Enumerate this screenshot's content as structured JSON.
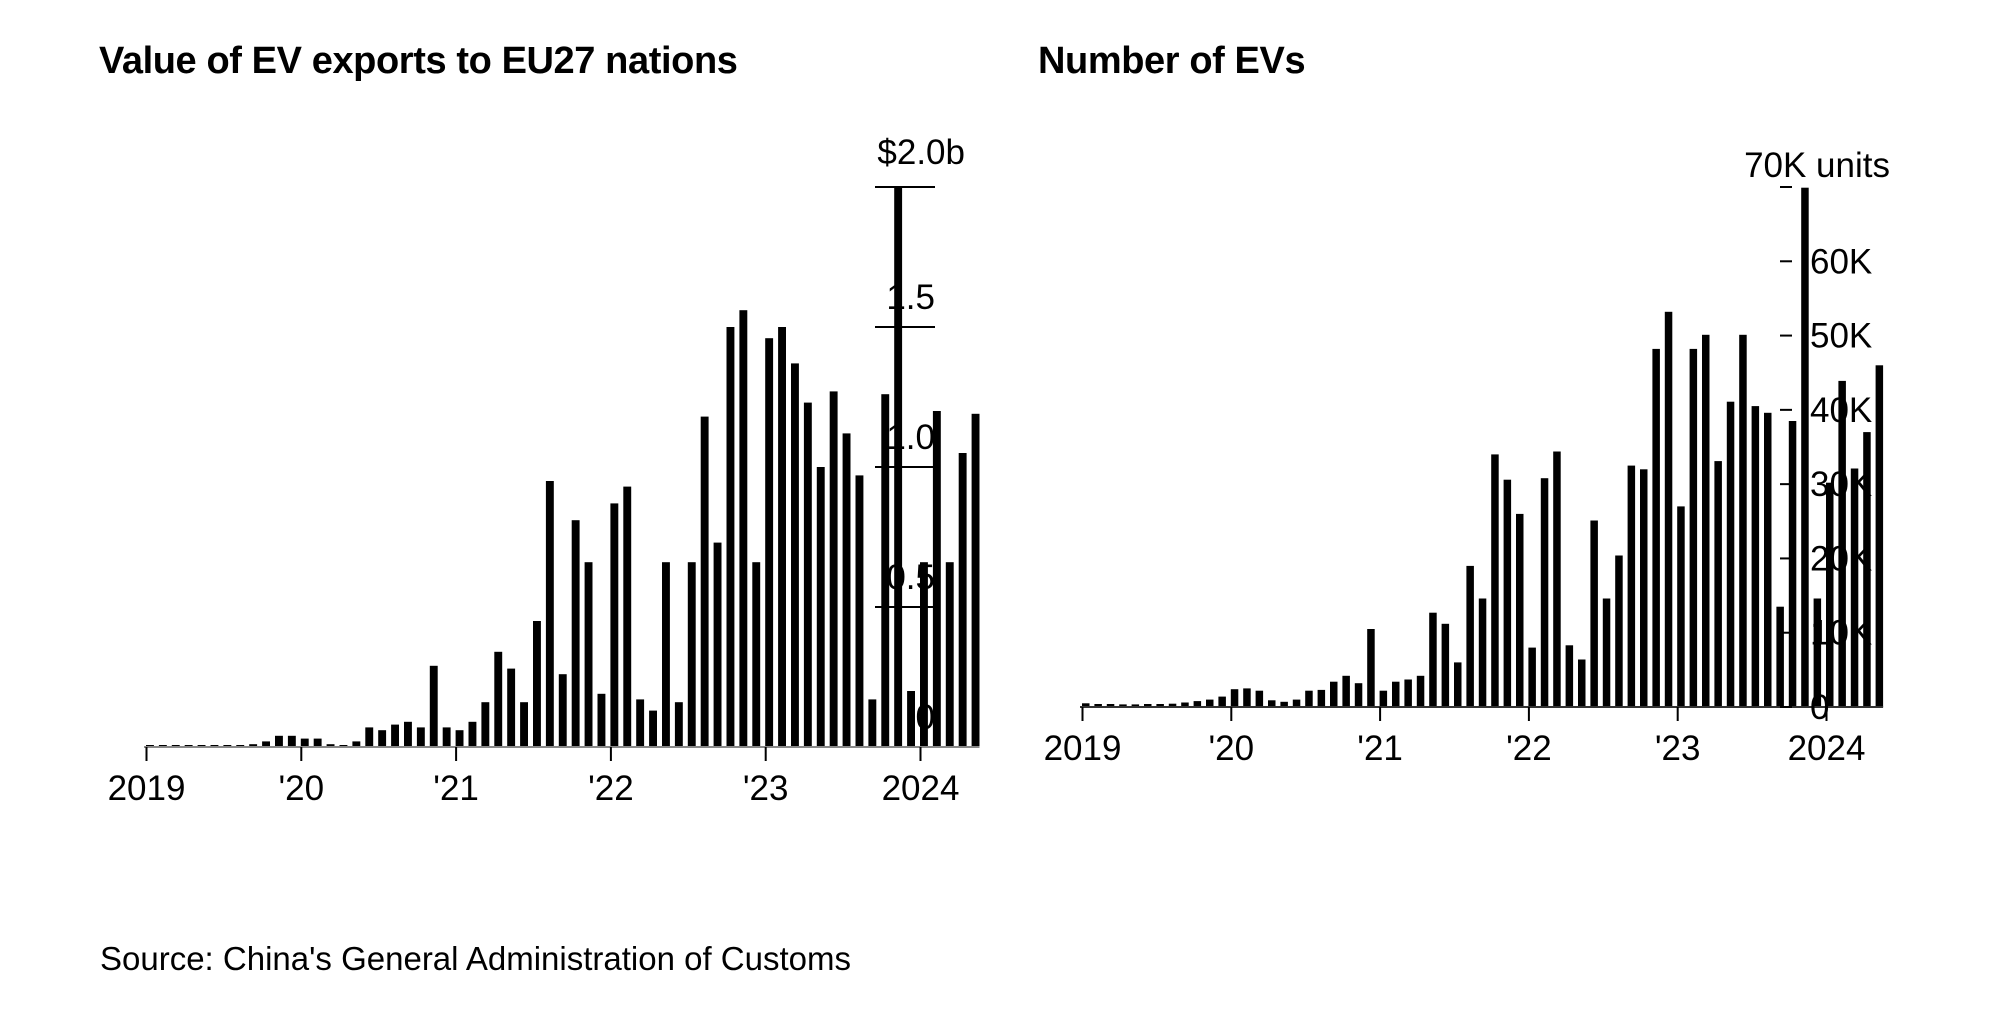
{
  "source": "Source: China's General Administration of Customs",
  "chart_data": [
    {
      "type": "bar",
      "title": "Value of EV exports to EU27 nations",
      "ylim": [
        0,
        2.0
      ],
      "y_ticks": [
        {
          "value": 0,
          "label": "0"
        },
        {
          "value": 0.5,
          "label": "0.5"
        },
        {
          "value": 1.0,
          "label": "1.0"
        },
        {
          "value": 1.5,
          "label": "1.5"
        },
        {
          "value": 2.0,
          "label": "$2.0b"
        }
      ],
      "x_ticks": [
        "2019",
        "'20",
        "'21",
        "'22",
        "'23",
        "2024"
      ],
      "start": "2019-01",
      "values": [
        0.005,
        0.005,
        0.005,
        0.005,
        0.005,
        0.005,
        0.005,
        0.005,
        0.01,
        0.02,
        0.04,
        0.04,
        0.03,
        0.03,
        0.01,
        0.005,
        0.02,
        0.07,
        0.06,
        0.08,
        0.09,
        0.07,
        0.29,
        0.07,
        0.06,
        0.09,
        0.16,
        0.34,
        0.28,
        0.16,
        0.45,
        0.95,
        0.26,
        0.81,
        0.66,
        0.19,
        0.87,
        0.93,
        0.17,
        0.13,
        0.66,
        0.16,
        0.66,
        1.18,
        0.73,
        1.5,
        1.56,
        0.66,
        1.46,
        1.5,
        1.37,
        1.23,
        1.0,
        1.27,
        1.12,
        0.97,
        0.17,
        1.26,
        2.0,
        0.2,
        0.66,
        1.2,
        0.66,
        1.05,
        1.19
      ]
    },
    {
      "type": "bar",
      "title": "Number of EVs",
      "ylim": [
        0,
        70000
      ],
      "y_ticks": [
        {
          "value": 0,
          "label": "0"
        },
        {
          "value": 10000,
          "label": "10K"
        },
        {
          "value": 20000,
          "label": "20K"
        },
        {
          "value": 30000,
          "label": "30K"
        },
        {
          "value": 40000,
          "label": "40K"
        },
        {
          "value": 50000,
          "label": "50K"
        },
        {
          "value": 60000,
          "label": "60K"
        },
        {
          "value": 70000,
          "label": "70K units"
        }
      ],
      "x_ticks": [
        "2019",
        "'20",
        "'21",
        "'22",
        "'23",
        "2024"
      ],
      "start": "2019-01",
      "values": [
        500,
        400,
        400,
        350,
        350,
        400,
        400,
        450,
        600,
        800,
        1000,
        1400,
        2400,
        2500,
        2200,
        900,
        700,
        1000,
        2200,
        2300,
        3400,
        4200,
        3200,
        10500,
        2200,
        3400,
        3700,
        4200,
        12700,
        11200,
        6000,
        19000,
        14600,
        34000,
        30600,
        26000,
        8000,
        30800,
        34400,
        8300,
        6400,
        25100,
        14600,
        20400,
        32500,
        32000,
        48200,
        53200,
        27000,
        48200,
        50100,
        33100,
        41100,
        50100,
        40500,
        39600,
        13500,
        38500,
        69900,
        14600,
        30200,
        43900,
        32100,
        37000,
        46000
      ]
    }
  ]
}
